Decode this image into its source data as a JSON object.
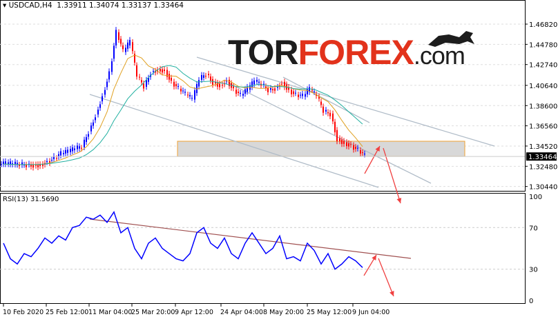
{
  "header": {
    "symbol": "USDCAD,H4",
    "ohlc": "1.33911 1.34074 1.33137 1.33464"
  },
  "logo": {
    "part1": "TOR",
    "part2": "FOREX",
    "part3": ".com"
  },
  "rsi": {
    "label": "RSI(13) 31.5690"
  },
  "colors": {
    "bull": "#0000ff",
    "bear": "#ff0000",
    "ma_fast": "#e0a020",
    "ma_slow": "#20b0a0",
    "rsi": "#0000ff",
    "zone_border": "#f0a030",
    "arrow": "#f04040",
    "trendline": "#b0bcc8",
    "rsi_trend": "#a05050"
  },
  "chart_data": [
    {
      "type": "line",
      "title": "USDCAD,H4",
      "series_kind": "candlestick",
      "ylim": [
        1.3044,
        1.4784
      ],
      "y_ticks": [
        "1.46820",
        "1.44780",
        "1.42740",
        "1.40640",
        "1.38600",
        "1.36560",
        "1.34520",
        "1.32480",
        "1.30440"
      ],
      "current_price": "1.33464",
      "x_ticks": [
        "10 Feb 2020",
        "25 Feb 12:00",
        "11 Mar 04:00",
        "25 Mar 20:00",
        "9 Apr 12:00",
        "24 Apr 04:00",
        "8 May 20:00",
        "25 May 12:00",
        "9 Jun 04:00"
      ],
      "close": [
        1.327,
        1.3265,
        1.326,
        1.3265,
        1.3265,
        1.327,
        1.33,
        1.333,
        1.337,
        1.339,
        1.342,
        1.344,
        1.36,
        1.377,
        1.397,
        1.42,
        1.46,
        1.44,
        1.45,
        1.415,
        1.405,
        1.42,
        1.423,
        1.422,
        1.41,
        1.403,
        1.397,
        1.392,
        1.412,
        1.418,
        1.41,
        1.407,
        1.412,
        1.402,
        1.396,
        1.402,
        1.41,
        1.407,
        1.402,
        1.404,
        1.41,
        1.402,
        1.397,
        1.395,
        1.402,
        1.395,
        1.38,
        1.378,
        1.353,
        1.349,
        1.346,
        1.341,
        1.3346
      ],
      "resistance_zone": [
        1.35,
        1.357
      ]
    },
    {
      "type": "line",
      "title": "RSI(13) 31.5690",
      "ylim": [
        0,
        100
      ],
      "y_ticks": [
        "100",
        "70",
        "30",
        "0"
      ],
      "values": [
        55,
        40,
        35,
        45,
        42,
        50,
        60,
        55,
        62,
        58,
        70,
        72,
        80,
        78,
        82,
        75,
        85,
        65,
        70,
        50,
        40,
        55,
        60,
        50,
        45,
        40,
        38,
        45,
        65,
        70,
        55,
        50,
        60,
        45,
        40,
        55,
        65,
        55,
        45,
        50,
        62,
        40,
        42,
        38,
        55,
        48,
        35,
        45,
        30,
        35,
        42,
        38,
        31.57
      ]
    }
  ]
}
